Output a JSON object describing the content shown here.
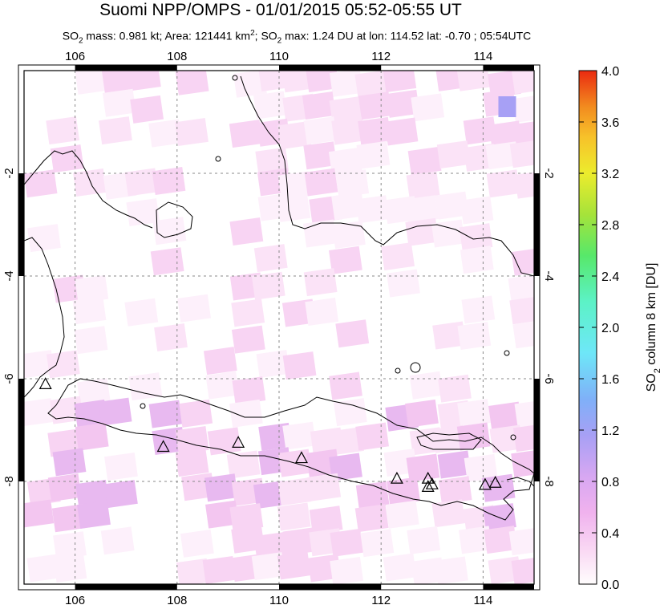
{
  "header": {
    "title": "Suomi NPP/OMPS - 01/01/2015 05:52-05:55 UT",
    "subtitle_parts": {
      "so2": "SO",
      "so2_sub": "2",
      "mass_text": " mass: 0.981 kt; Area: 121441 km",
      "area_sup": "2",
      "sep": "; ",
      "max_text": " max: 1.24 DU at lon: 114.52 lat: -0.70 ; 05:54UTC"
    }
  },
  "map": {
    "lon_range": [
      105,
      115
    ],
    "lat_range": [
      -10,
      0
    ],
    "lon_ticks": [
      "106",
      "108",
      "110",
      "112",
      "114"
    ],
    "lat_ticks": [
      "-2",
      "-4",
      "-6",
      "-8"
    ],
    "grid": "dashed",
    "volcano_marker": "triangle-icon",
    "volcano_count": 10
  },
  "colorbar": {
    "ticks": [
      "4.0",
      "3.6",
      "3.2",
      "2.8",
      "2.4",
      "2.0",
      "1.6",
      "1.2",
      "0.8",
      "0.4",
      "0.0"
    ],
    "label_prefix": "SO",
    "label_sub": "2",
    "label_suffix": " column 8 km [DU]",
    "colors": [
      "#fffdfd",
      "#f9d6f3",
      "#f0b2ee",
      "#d7a7f2",
      "#a7a0f5",
      "#7fb0f8",
      "#6ee7f8",
      "#5cf2c6",
      "#57e86a",
      "#a6e33a",
      "#ecec2d",
      "#f7c22a",
      "#f28b1f",
      "#ee4a14",
      "#ea2a10"
    ]
  }
}
